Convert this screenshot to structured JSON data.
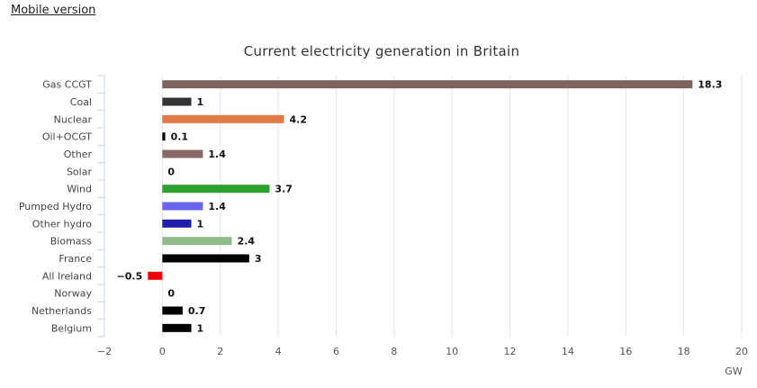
{
  "header": {
    "mobile_link_label": "Mobile version"
  },
  "chart_data": {
    "type": "bar",
    "orientation": "horizontal",
    "title": "Current electricity generation in Britain",
    "xlabel": "GW",
    "ylabel": "",
    "xlim": [
      -2,
      20
    ],
    "xticks": [
      -2,
      0,
      2,
      4,
      6,
      8,
      10,
      12,
      14,
      16,
      18,
      20
    ],
    "xtick_labels": [
      "−2",
      "0",
      "2",
      "4",
      "6",
      "8",
      "10",
      "12",
      "14",
      "16",
      "18",
      "20"
    ],
    "grid": true,
    "categories": [
      "Gas CCGT",
      "Coal",
      "Nuclear",
      "Oil+OCGT",
      "Other",
      "Solar",
      "Wind",
      "Pumped Hydro",
      "Other hydro",
      "Biomass",
      "France",
      "All Ireland",
      "Norway",
      "Netherlands",
      "Belgium"
    ],
    "values": [
      18.3,
      1,
      4.2,
      0.1,
      1.4,
      0,
      3.7,
      1.4,
      1,
      2.4,
      3,
      -0.5,
      0,
      0.7,
      1
    ],
    "data_labels": [
      "18.3",
      "1",
      "4.2",
      "0.1",
      "1.4",
      "0",
      "3.7",
      "1.4",
      "1",
      "2.4",
      "3",
      "−0.5",
      "0",
      "0.7",
      "1"
    ],
    "colors": [
      "#7f6360",
      "#333333",
      "#e07b45",
      "#000000",
      "#8b6866",
      "#d8c24a",
      "#2ca02c",
      "#6666ee",
      "#1f1faa",
      "#8fbc8a",
      "#000000",
      "#ee0000",
      "#000000",
      "#000000",
      "#000000"
    ]
  }
}
